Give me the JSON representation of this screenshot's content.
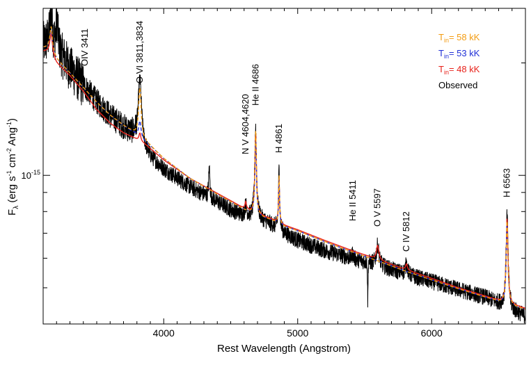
{
  "chart_data": {
    "type": "line",
    "title": "",
    "xlabel": "Rest Wavelength (Angstrom)",
    "ylabel": {
      "main": "F",
      "sub": "λ",
      "units_open": "(erg s",
      "exp1": "-1",
      "mid1": " cm",
      "exp2": "-2",
      "mid2": " Ang",
      "exp3": "-1",
      "units_close": ")"
    },
    "yscale": "log",
    "xlim": [
      3100,
      6700
    ],
    "ylim": [
      4e-16,
      2.8e-15
    ],
    "x_ticks": [
      4000,
      5000,
      6000
    ],
    "x_tick_labels": [
      "4000",
      "5000",
      "6000"
    ],
    "y_major_tick": 1e-15,
    "y_tick_label": {
      "base": "10",
      "exp": "-15"
    },
    "y_minor_ticks": [
      5e-16,
      6e-16,
      7e-16,
      8e-16,
      9e-16,
      2e-15
    ],
    "legend": {
      "placement": "top-right",
      "entries": [
        {
          "prefix": "T",
          "sub": "in",
          "value": "= 58 kK",
          "color": "#f39c12"
        },
        {
          "prefix": "T",
          "sub": "in",
          "value": "= 53 kK",
          "color": "#1f2fd6"
        },
        {
          "prefix": "T",
          "sub": "in",
          "value": "= 48 kK",
          "color": "#e8221b"
        },
        {
          "prefix": "",
          "sub": "",
          "value": "Observed",
          "color": "#000000"
        }
      ]
    },
    "line_labels": [
      {
        "text": "OIV 3411",
        "x": 3411
      },
      {
        "text": "O VI 3811,3834",
        "x": 3822
      },
      {
        "text": "N V 4604,4620",
        "x": 4612
      },
      {
        "text": "He II 4686",
        "x": 4686
      },
      {
        "text": "H 4861",
        "x": 4861
      },
      {
        "text": "He II 5411",
        "x": 5411
      },
      {
        "text": "O V 5597",
        "x": 5597
      },
      {
        "text": "C IV 5812",
        "x": 5812
      },
      {
        "text": "H 6563",
        "x": 6563
      }
    ],
    "continuum_x": [
      3100,
      3150,
      3200,
      3300,
      3400,
      3500,
      3600,
      3700,
      3780,
      3850,
      3900,
      4000,
      4200,
      4400,
      4500,
      4600,
      4700,
      4800,
      4900,
      5000,
      5200,
      5400,
      5600,
      5800,
      6000,
      6200,
      6400,
      6500,
      6600,
      6700
    ],
    "series": [
      {
        "name": "Observed",
        "color": "#000000",
        "values": [
          2.25e-15,
          2.3e-15,
          2.2e-15,
          1.95e-15,
          1.75e-15,
          1.58e-15,
          1.45e-15,
          1.35e-15,
          1.28e-15,
          1.18e-15,
          1.12e-15,
          1.04e-15,
          9.3e-16,
          8.5e-16,
          8.1e-16,
          7.8e-16,
          7.7e-16,
          7.4e-16,
          7e-16,
          6.7e-16,
          6.3e-16,
          6e-16,
          5.75e-16,
          5.45e-16,
          5.2e-16,
          4.95e-16,
          4.72e-16,
          4.55e-16,
          4.35e-16,
          4.2e-16
        ],
        "lines": [
          {
            "x": 3160,
            "peak": 2.7e-15,
            "width": 10
          },
          {
            "x": 3204,
            "peak": 2.6e-15,
            "width": 8
          },
          {
            "x": 3822,
            "peak": 1.8e-15,
            "width": 14
          },
          {
            "x": 4340,
            "peak": 1.05e-15,
            "width": 5
          },
          {
            "x": 4612,
            "peak": 8.3e-16,
            "width": 8
          },
          {
            "x": 4686,
            "peak": 1.35e-15,
            "width": 7
          },
          {
            "x": 4861,
            "peak": 1.04e-15,
            "width": 5
          },
          {
            "x": 5411,
            "peak": 6.2e-16,
            "width": 6
          },
          {
            "x": 5597,
            "peak": 6.5e-16,
            "width": 12
          },
          {
            "x": 5812,
            "peak": 5.8e-16,
            "width": 10
          },
          {
            "x": 6563,
            "peak": 7.9e-16,
            "width": 8
          }
        ],
        "dips": [
          {
            "x": 5523,
            "depth": 4.6e-16
          }
        ]
      },
      {
        "name": "Tin= 58 kK",
        "color": "#f39c12",
        "dashed": true,
        "values": [
          2.2e-15,
          2.2e-15,
          2.05e-15,
          1.88e-15,
          1.72e-15,
          1.57e-15,
          1.45e-15,
          1.36e-15,
          1.3e-15,
          1.24e-15,
          1.2e-15,
          1.11e-15,
          9.8e-16,
          8.9e-16,
          8.5e-16,
          8.1e-16,
          7.8e-16,
          7.6e-16,
          7.3e-16,
          7.1e-16,
          6.65e-16,
          6.25e-16,
          5.9e-16,
          5.55e-16,
          5.25e-16,
          4.97e-16,
          4.72e-16,
          4.6e-16,
          4.48e-16,
          4.37e-16
        ],
        "lines": [
          {
            "x": 3160,
            "peak": 2.5e-15,
            "width": 10
          },
          {
            "x": 3822,
            "peak": 1.72e-15,
            "width": 10
          },
          {
            "x": 4686,
            "peak": 1.33e-15,
            "width": 6
          },
          {
            "x": 4861,
            "peak": 1e-15,
            "width": 4
          },
          {
            "x": 6563,
            "peak": 7.6e-16,
            "width": 7
          }
        ]
      },
      {
        "name": "Tin= 53 kK",
        "color": "#1f2fd6",
        "dashed": true,
        "values": [
          2.2e-15,
          2.2e-15,
          2.05e-15,
          1.88e-15,
          1.72e-15,
          1.57e-15,
          1.45e-15,
          1.36e-15,
          1.3e-15,
          1.24e-15,
          1.2e-15,
          1.11e-15,
          9.8e-16,
          8.9e-16,
          8.5e-16,
          8.1e-16,
          7.8e-16,
          7.6e-16,
          7.3e-16,
          7.1e-16,
          6.65e-16,
          6.25e-16,
          5.9e-16,
          5.55e-16,
          5.25e-16,
          4.97e-16,
          4.72e-16,
          4.6e-16,
          4.48e-16,
          4.37e-16
        ],
        "lines": [
          {
            "x": 3160,
            "peak": 2.45e-15,
            "width": 10
          },
          {
            "x": 3822,
            "peak": 1.4e-15,
            "width": 10
          },
          {
            "x": 4686,
            "peak": 1.25e-15,
            "width": 6
          },
          {
            "x": 4861,
            "peak": 9.8e-16,
            "width": 4
          },
          {
            "x": 6563,
            "peak": 7.4e-16,
            "width": 7
          }
        ]
      },
      {
        "name": "Tin= 48 kK",
        "color": "#e8221b",
        "dashed": false,
        "values": [
          2.15e-15,
          2.15e-15,
          2e-15,
          1.85e-15,
          1.68e-15,
          1.5e-15,
          1.38e-15,
          1.3e-15,
          1.26e-15,
          1.22e-15,
          1.18e-15,
          1.1e-15,
          9.8e-16,
          8.95e-16,
          8.55e-16,
          8.15e-16,
          7.85e-16,
          7.65e-16,
          7.35e-16,
          7.15e-16,
          6.7e-16,
          6.3e-16,
          5.95e-16,
          5.6e-16,
          5.3e-16,
          5e-16,
          4.75e-16,
          4.62e-16,
          4.5e-16,
          4.4e-16
        ],
        "lines": [
          {
            "x": 3160,
            "peak": 2.4e-15,
            "width": 10
          },
          {
            "x": 3822,
            "peak": 1.3e-15,
            "width": 8
          },
          {
            "x": 4612,
            "peak": 8.5e-16,
            "width": 6
          },
          {
            "x": 4686,
            "peak": 1.3e-15,
            "width": 6
          },
          {
            "x": 4861,
            "peak": 9.8e-16,
            "width": 4
          },
          {
            "x": 5597,
            "peak": 6.5e-16,
            "width": 10
          },
          {
            "x": 5812,
            "peak": 5.8e-16,
            "width": 8
          },
          {
            "x": 6563,
            "peak": 7.7e-16,
            "width": 7
          }
        ]
      }
    ]
  }
}
